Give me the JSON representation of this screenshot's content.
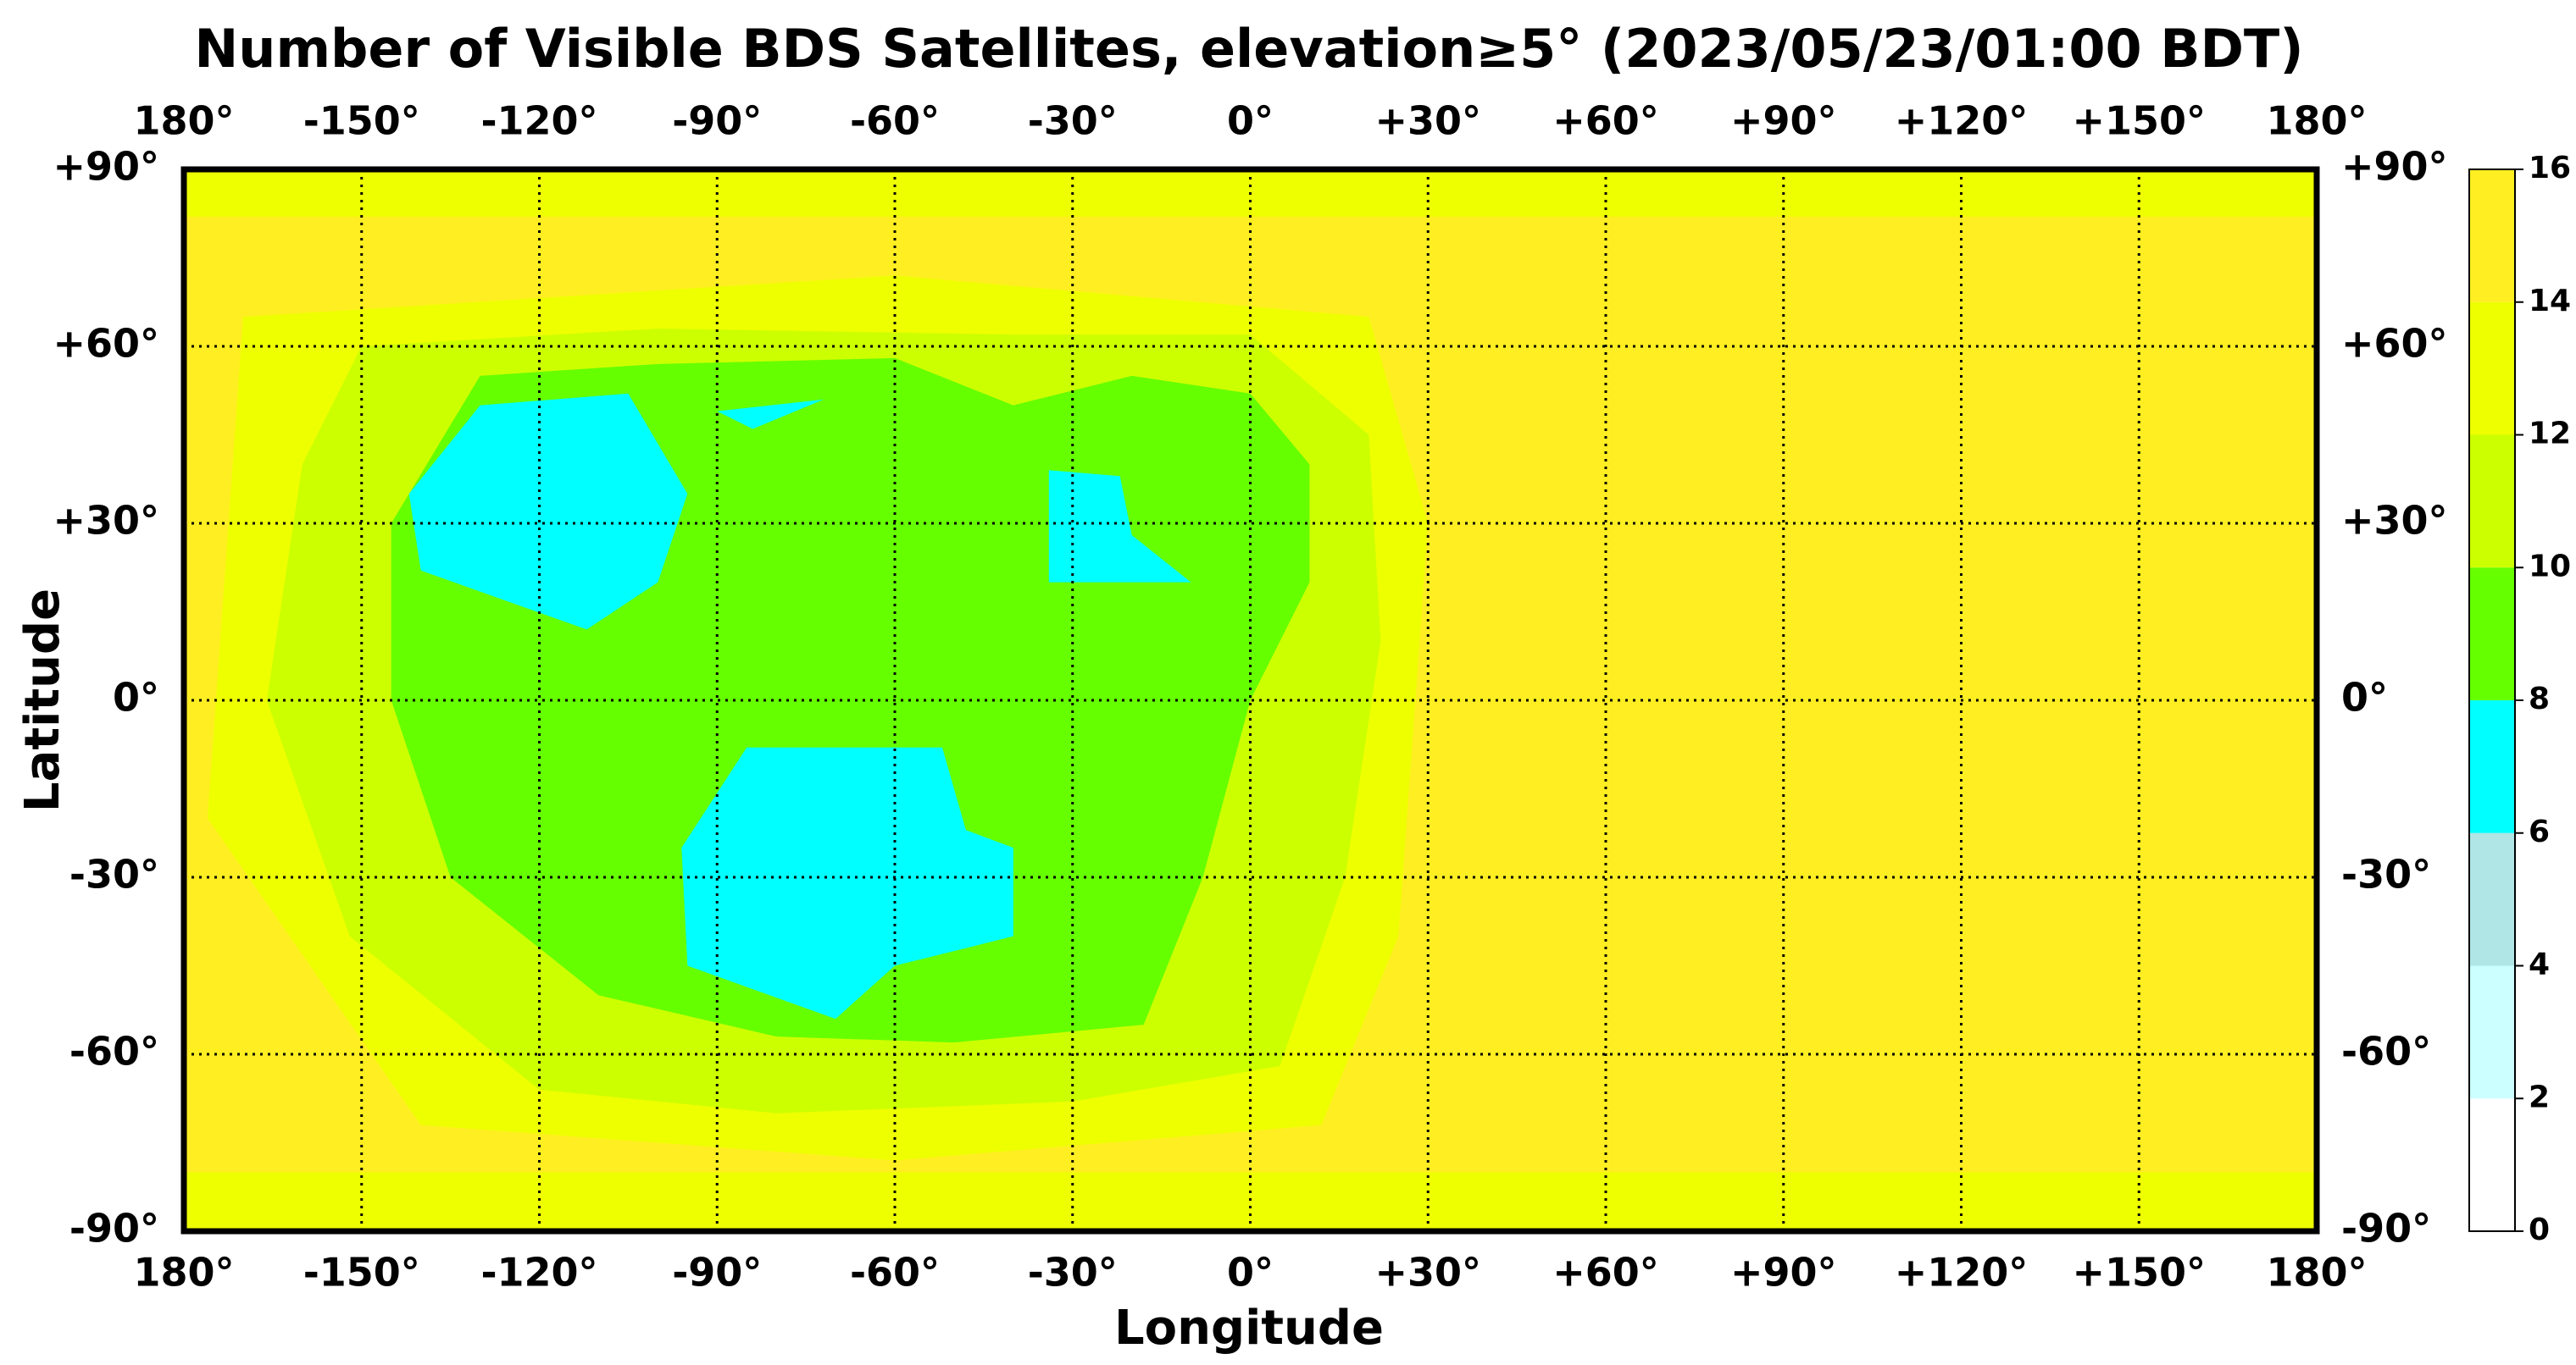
{
  "chart_data": {
    "type": "map",
    "title": "Number of Visible BDS Satellites, elevation≥5° (2023/05/23/01:00 BDT)",
    "xlabel": "Longitude",
    "ylabel": "Latitude",
    "xlim": [
      -180,
      180
    ],
    "ylim": [
      -90,
      90
    ],
    "xticks": [
      {
        "value": -180,
        "label": "180°"
      },
      {
        "value": -150,
        "label": "-150°"
      },
      {
        "value": -120,
        "label": "-120°"
      },
      {
        "value": -90,
        "label": "-90°"
      },
      {
        "value": -60,
        "label": "-60°"
      },
      {
        "value": -30,
        "label": "-30°"
      },
      {
        "value": 0,
        "label": "0°"
      },
      {
        "value": 30,
        "label": "+30°"
      },
      {
        "value": 60,
        "label": "+60°"
      },
      {
        "value": 90,
        "label": "+90°"
      },
      {
        "value": 120,
        "label": "+120°"
      },
      {
        "value": 150,
        "label": "+150°"
      },
      {
        "value": 180,
        "label": "180°"
      }
    ],
    "yticks": [
      {
        "value": -90,
        "label": "-90°"
      },
      {
        "value": -60,
        "label": "-60°"
      },
      {
        "value": -30,
        "label": "-30°"
      },
      {
        "value": 0,
        "label": "0°"
      },
      {
        "value": 30,
        "label": "+30°"
      },
      {
        "value": 60,
        "label": "+60°"
      },
      {
        "value": 90,
        "label": "+90°"
      }
    ],
    "grid": true,
    "colorbar": {
      "levels": [
        0,
        2,
        4,
        6,
        8,
        10,
        12,
        14,
        16
      ],
      "colors": [
        "#ffffff",
        "#ccffff",
        "#b0e6e6",
        "#00ffff",
        "#66ff00",
        "#ccff00",
        "#eeff00",
        "#ffee22"
      ]
    }
  }
}
